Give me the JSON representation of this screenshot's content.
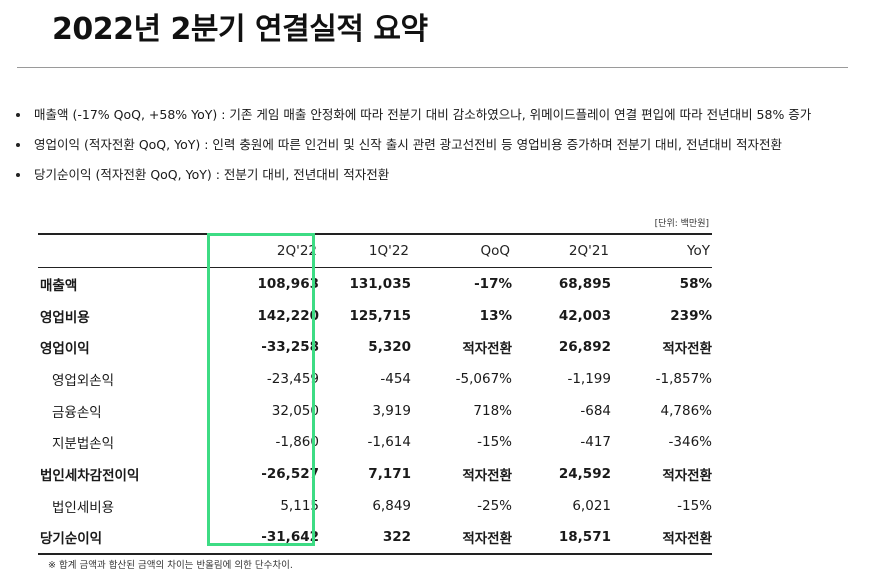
{
  "title": "2022년 2분기 연결실적 요약",
  "bullets": [
    "매출액 (-17% QoQ, +58% YoY) : 기존 게임 매출 안정화에 따라 전분기 대비 감소하였으나, 위메이드플레이 연결 편입에 따라 전년대비 58% 증가",
    "영업이익 (적자전환 QoQ, YoY) : 인력 충원에 따른 인건비 및 신작 출시 관련 광고선전비 등 영업비용 증가하며 전분기 대비, 전년대비 적자전환",
    "당기순이익 (적자전환 QoQ, YoY) : 전분기 대비, 전년대비 적자전환"
  ],
  "unit": "[단위: 백만원]",
  "table": {
    "headers": [
      "",
      "2Q'22",
      "1Q'22",
      "QoQ",
      "2Q'21",
      "YoY"
    ],
    "rows": [
      {
        "style": "bold",
        "cells": [
          "매출액",
          "108,963",
          "131,035",
          "-17%",
          "68,895",
          "58%"
        ]
      },
      {
        "style": "bold",
        "cells": [
          "영업비용",
          "142,220",
          "125,715",
          "13%",
          "42,003",
          "239%"
        ]
      },
      {
        "style": "bold",
        "cells": [
          "영업이익",
          "-33,258",
          "5,320",
          "적자전환",
          "26,892",
          "적자전환"
        ]
      },
      {
        "style": "sub",
        "cells": [
          "영업외손익",
          "-23,459",
          "-454",
          "-5,067%",
          "-1,199",
          "-1,857%"
        ]
      },
      {
        "style": "sub",
        "cells": [
          "금융손익",
          "32,050",
          "3,919",
          "718%",
          "-684",
          "4,786%"
        ]
      },
      {
        "style": "sub",
        "cells": [
          "지분법손익",
          "-1,860",
          "-1,614",
          "-15%",
          "-417",
          "-346%"
        ]
      },
      {
        "style": "bold",
        "cells": [
          "법인세차감전이익",
          "-26,527",
          "7,171",
          "적자전환",
          "24,592",
          "적자전환"
        ]
      },
      {
        "style": "sub",
        "cells": [
          "법인세비용",
          "5,115",
          "6,849",
          "-25%",
          "6,021",
          "-15%"
        ]
      },
      {
        "style": "bold",
        "cells": [
          "당기순이익",
          "-31,642",
          "322",
          "적자전환",
          "18,571",
          "적자전환"
        ]
      }
    ]
  },
  "footnote": "※ 합계 금액과 합산된 금액의 차이는 반올림에 의한 단수차이.",
  "colors": {
    "highlight": "#3ddc84"
  }
}
